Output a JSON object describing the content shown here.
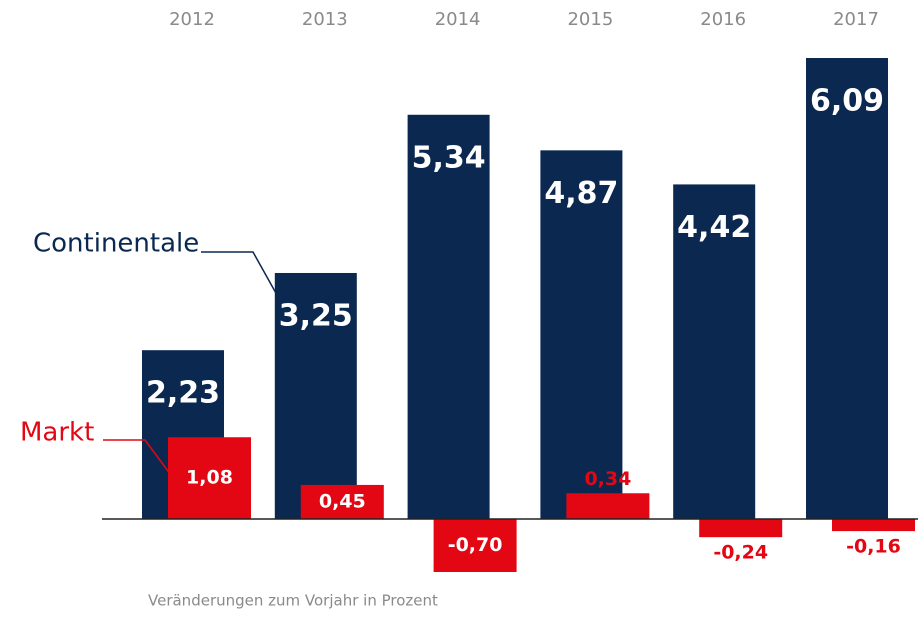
{
  "chart_data": {
    "type": "bar",
    "categories": [
      "2012",
      "2013",
      "2014",
      "2015",
      "2016",
      "2017"
    ],
    "series": [
      {
        "name": "Continentale",
        "color": "#0a2850",
        "values": [
          2.23,
          3.25,
          5.34,
          4.87,
          4.42,
          6.09
        ],
        "value_labels": [
          "2,23",
          "3,25",
          "5,34",
          "4,87",
          "4,42",
          "6,09"
        ]
      },
      {
        "name": "Markt",
        "color": "#e30613",
        "values": [
          1.08,
          0.45,
          -0.7,
          0.34,
          -0.24,
          -0.16
        ],
        "value_labels": [
          "1,08",
          "0,45",
          "-0,70",
          "0,34",
          "-0,24",
          "-0,16"
        ]
      }
    ],
    "note": "Veränderungen zum Vorjahr in Prozent"
  }
}
